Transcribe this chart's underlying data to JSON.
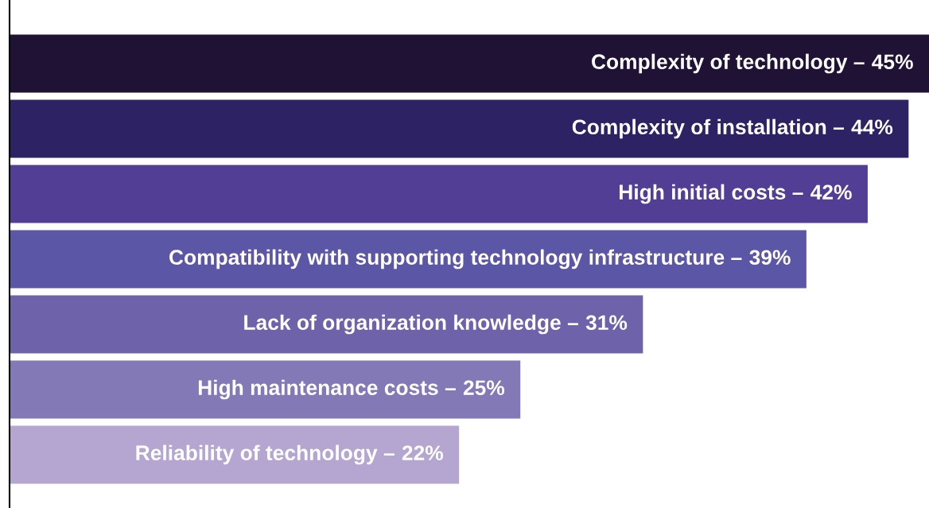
{
  "chart_data": {
    "type": "bar",
    "orientation": "horizontal",
    "categories": [
      "Complexity of technology –",
      "Complexity of installation –",
      "High initial costs –",
      "Compatibility with supporting technology infrastructure –",
      "Lack of organization knowledge –",
      "High maintenance costs –",
      "Reliability of technology –"
    ],
    "values": [
      45,
      44,
      42,
      39,
      31,
      25,
      22
    ],
    "colors": [
      "#1f1235",
      "#2c2264",
      "#533e96",
      "#5c56a6",
      "#6e62aa",
      "#8479b7",
      "#b4a6d1"
    ],
    "value_labels": [
      "45%",
      "44%",
      "42%",
      "39%",
      "31%",
      "25%",
      "22%"
    ]
  }
}
